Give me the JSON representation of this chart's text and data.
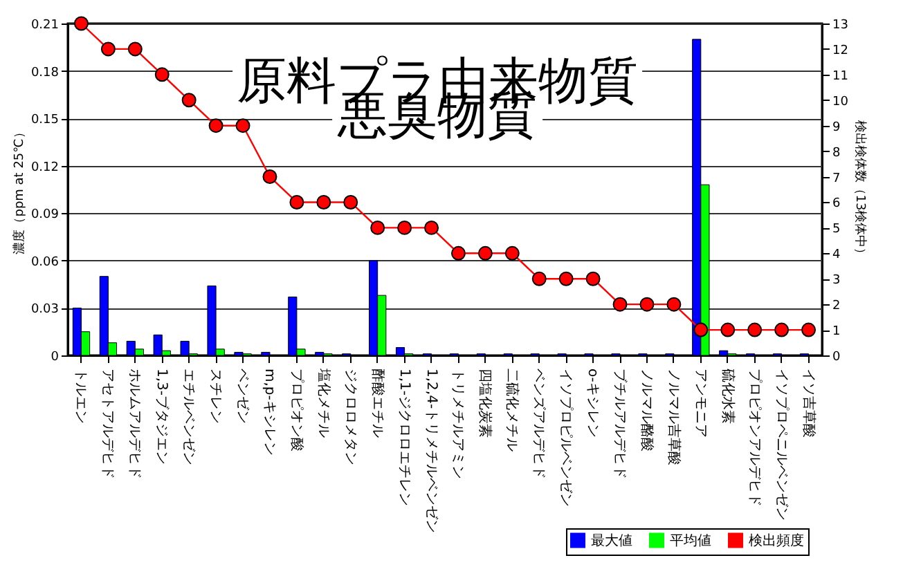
{
  "chart_data": {
    "type": "bar",
    "title": "原料プラ由来物質",
    "subtitle": "悪臭物質",
    "ylabel": "濃度（ppm at 25℃）",
    "y2label": "検出検体数（13検体中）",
    "categories": [
      "トルエン",
      "アセトアルデヒド",
      "ホルムアルデヒド",
      "1,3-ブタジエン",
      "エチルベンゼン",
      "スチレン",
      "ベンゼン",
      "m,p-キシレン",
      "プロピオン酸",
      "塩化メチル",
      "ジクロロメタン",
      "酢酸エチル",
      "1,1-ジクロロエチレン",
      "1,2,4-トリメチルベンゼン",
      "トリメチルアミン",
      "四塩化炭素",
      "二硫化メチル",
      "ベンズアルデヒド",
      "イソプロピルベンゼン",
      "o-キシレン",
      "ブチルアルデヒド",
      "ノルマル酪酸",
      "ノルマル吉草酸",
      "アンモニア",
      "硫化水素",
      "プロピオンアルデヒド",
      "イソプロペニルベンゼン",
      "イソ吉草酸"
    ],
    "series": [
      {
        "name": "最大値",
        "color": "#0000ff",
        "values": [
          0.03,
          0.05,
          0.009,
          0.013,
          0.009,
          0.044,
          0.002,
          0.002,
          0.037,
          0.002,
          0.001,
          0.06,
          0.005,
          0.001,
          0.001,
          0.001,
          0.001,
          0.001,
          0.001,
          0.001,
          0.001,
          0.001,
          0.001,
          0.2,
          0.003,
          0.001,
          0.001,
          0.001
        ]
      },
      {
        "name": "平均値",
        "color": "#00ff00",
        "values": [
          0.015,
          0.008,
          0.004,
          0.003,
          0.001,
          0.004,
          0.001,
          0,
          0.004,
          0.001,
          0,
          0.038,
          0.001,
          0,
          0,
          0,
          0,
          0,
          0,
          0,
          0,
          0,
          0,
          0.108,
          0.001,
          0,
          0,
          0
        ]
      },
      {
        "name": "検出頻度",
        "type": "line",
        "axis": "y2",
        "color": "#ff0000",
        "values": [
          13,
          12,
          12,
          11,
          10,
          9,
          9,
          7,
          6,
          6,
          6,
          5,
          5,
          5,
          4,
          4,
          4,
          3,
          3,
          3,
          2,
          2,
          2,
          1,
          1,
          1,
          1,
          1
        ]
      }
    ],
    "ylim": [
      0,
      0.21
    ],
    "yticks": [
      0,
      0.03,
      0.06,
      0.09,
      0.12,
      0.15,
      0.18,
      0.21
    ],
    "y2lim": [
      0,
      13
    ],
    "y2ticks": [
      0,
      1,
      2,
      3,
      4,
      5,
      6,
      7,
      8,
      9,
      10,
      11,
      12,
      13
    ],
    "grid": "y",
    "legend": "bottom right",
    "marker": "circle",
    "line_style": "solid"
  }
}
